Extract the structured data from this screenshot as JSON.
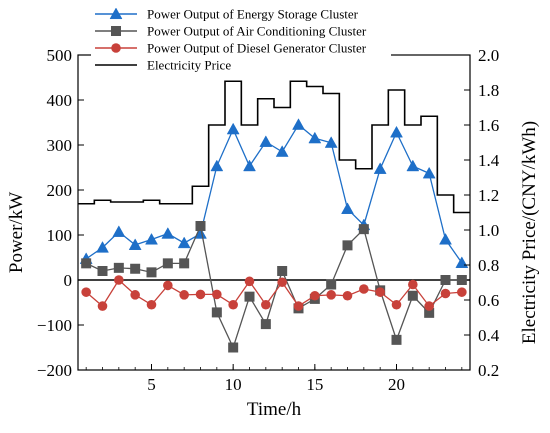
{
  "chart_data": {
    "type": "line",
    "title": "",
    "xlabel": "Time/h",
    "ylabel": "Power/kW",
    "y2label": "Electricity Price/(CNY/kWh)",
    "xlim": [
      0.5,
      24.5
    ],
    "ylim": [
      -200,
      500
    ],
    "y2lim": [
      0.2,
      2.0
    ],
    "x_ticks": [
      "5",
      "10",
      "15",
      "20"
    ],
    "y_ticks": [
      "500",
      "400",
      "300",
      "200",
      "100",
      "0",
      "−100",
      "−200"
    ],
    "y2_ticks": [
      "2.0",
      "1.8",
      "1.6",
      "1.4",
      "1.2",
      "1.0",
      "0.8",
      "0.6",
      "0.4",
      "0.2"
    ],
    "legend_position": "top-left",
    "grid": false,
    "zero_line": true,
    "x": [
      1,
      2,
      3,
      4,
      5,
      6,
      7,
      8,
      9,
      10,
      11,
      12,
      13,
      14,
      15,
      16,
      17,
      18,
      19,
      20,
      21,
      22,
      23,
      24
    ],
    "series": [
      {
        "name": "Power Output of Energy Storage Cluster",
        "axis": "left",
        "color": "#1e6fc8",
        "marker": "triangle",
        "values": [
          47,
          72,
          107,
          78,
          90,
          103,
          82,
          103,
          253,
          335,
          253,
          307,
          285,
          345,
          315,
          305,
          158,
          122,
          247,
          328,
          253,
          237,
          90,
          38
        ]
      },
      {
        "name": "Power Output of Air Conditioning Cluster",
        "axis": "left",
        "color": "#555555",
        "marker": "square",
        "values": [
          37,
          20,
          27,
          25,
          17,
          37,
          37,
          120,
          -72,
          -150,
          -37,
          -98,
          20,
          -63,
          -42,
          -10,
          77,
          113,
          -23,
          -133,
          -35,
          -73,
          0,
          0
        ]
      },
      {
        "name": "Power Output of Diesel Generator Cluster",
        "axis": "left",
        "color": "#c8413a",
        "marker": "circle",
        "values": [
          -27,
          -58,
          0,
          -33,
          -55,
          -12,
          -33,
          -32,
          -32,
          -55,
          -3,
          -55,
          -5,
          -58,
          -35,
          -33,
          -35,
          -20,
          -27,
          -55,
          -10,
          -58,
          -30,
          -27
        ]
      },
      {
        "name": "Electricity Price",
        "axis": "right",
        "color": "#000000",
        "marker": "none",
        "step": true,
        "values": [
          1.15,
          1.17,
          1.16,
          1.16,
          1.17,
          1.15,
          1.15,
          1.25,
          1.6,
          1.85,
          1.6,
          1.75,
          1.7,
          1.85,
          1.82,
          1.78,
          1.4,
          1.35,
          1.6,
          1.8,
          1.6,
          1.65,
          1.2,
          1.1
        ]
      }
    ]
  }
}
